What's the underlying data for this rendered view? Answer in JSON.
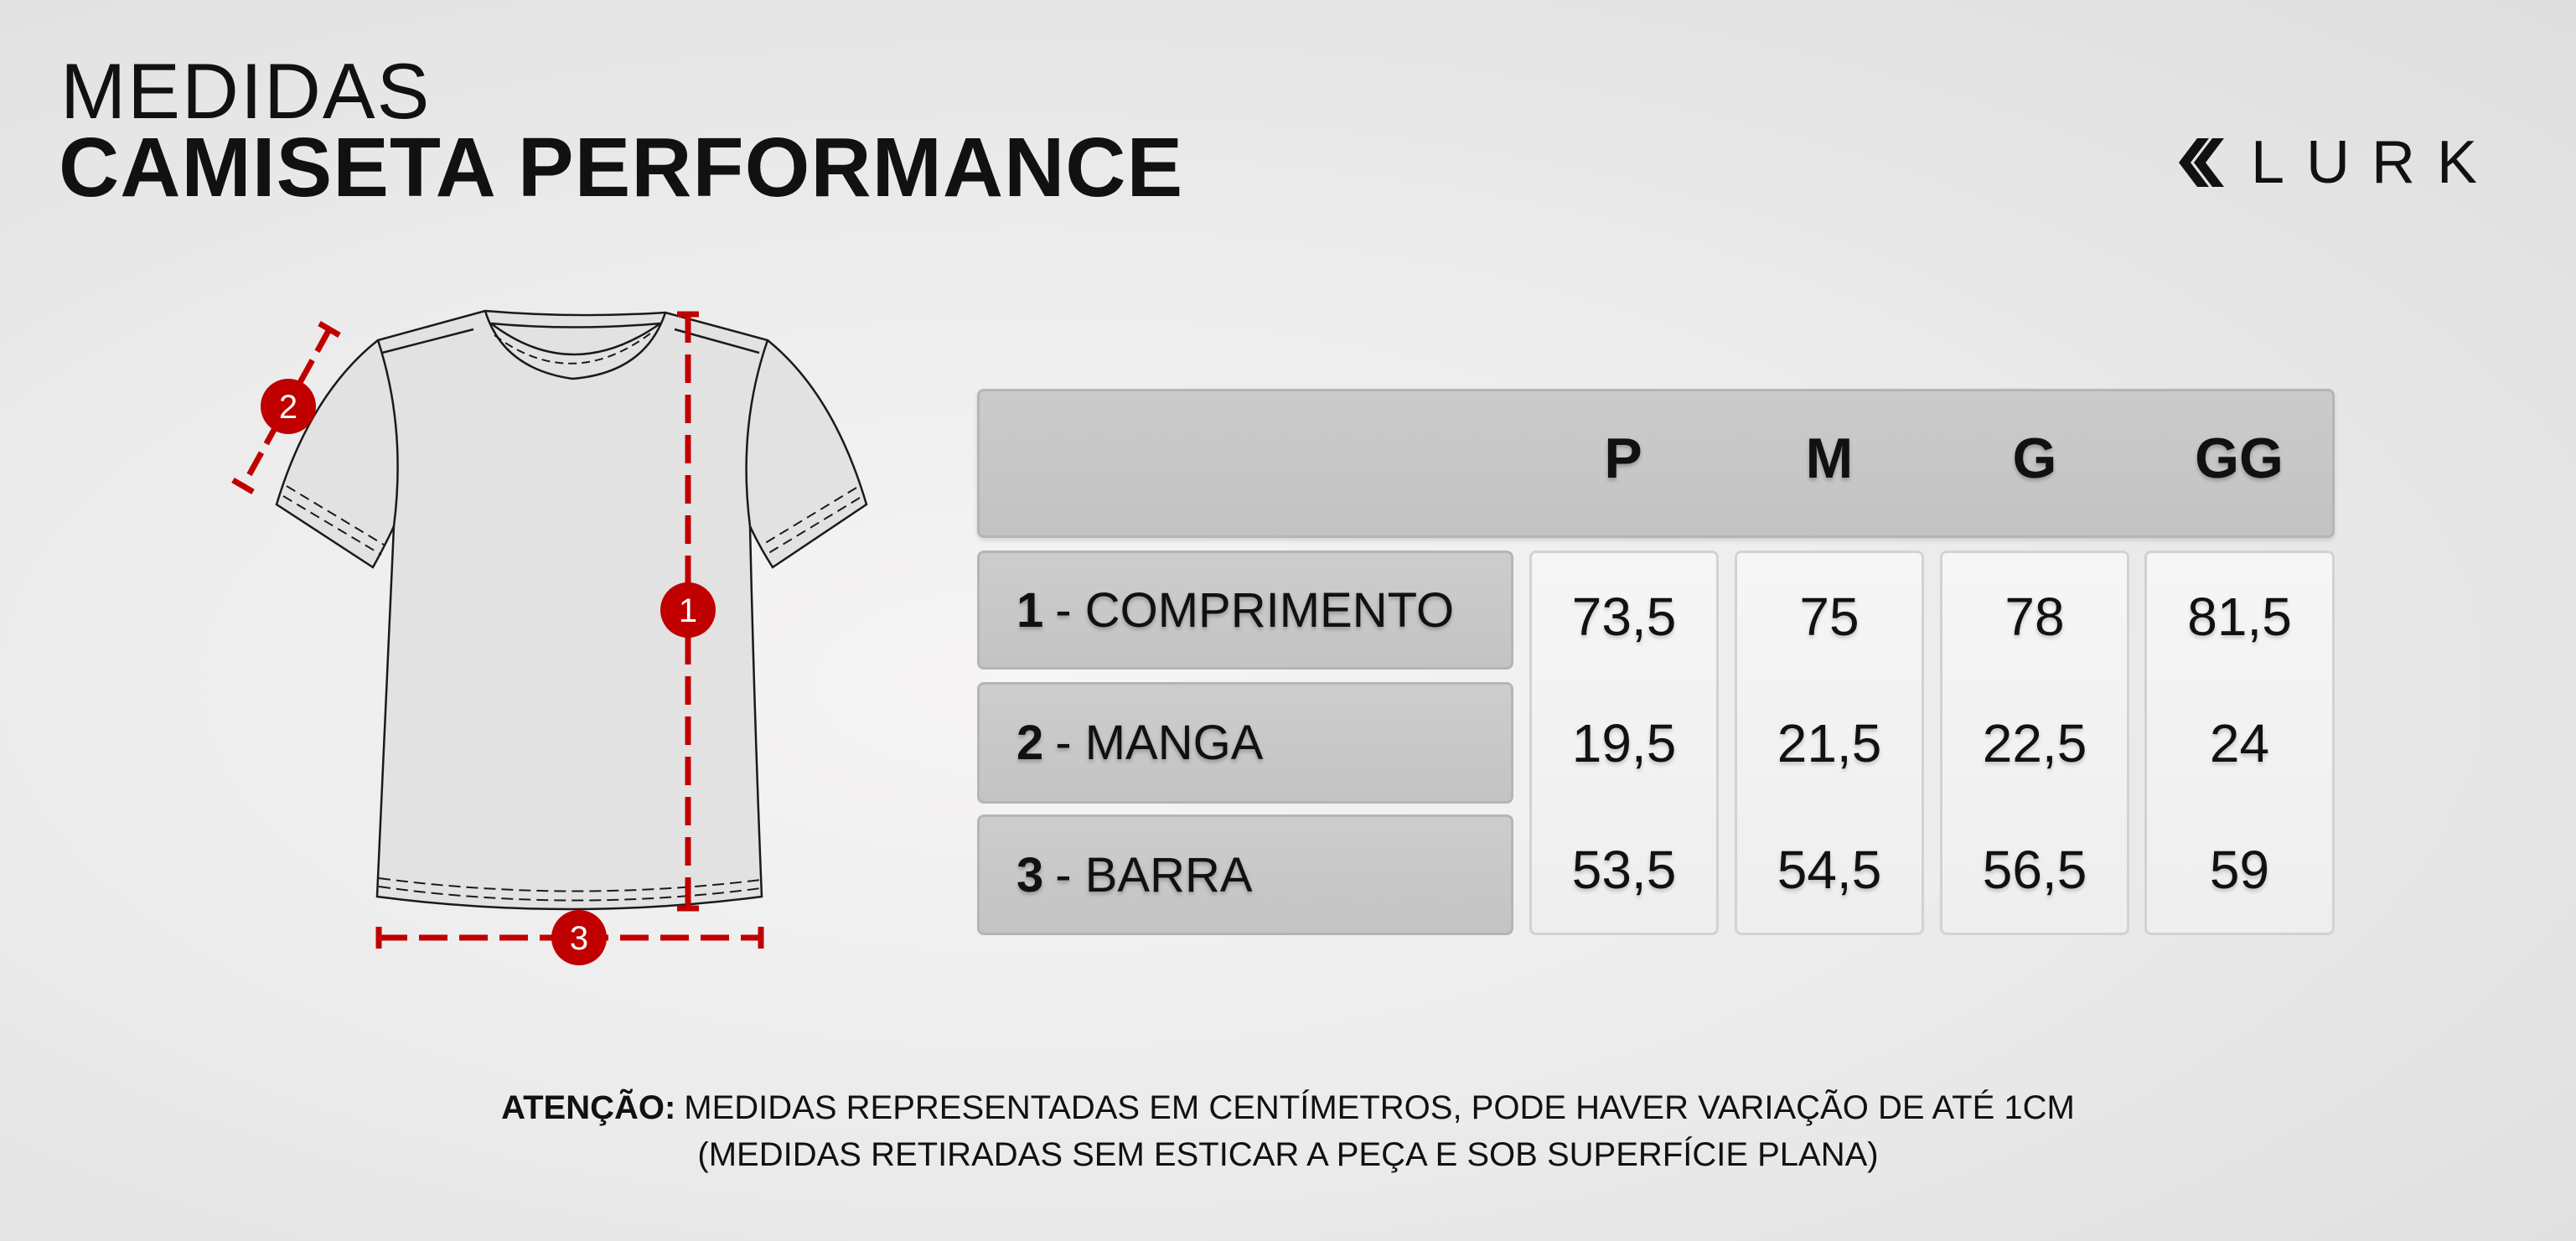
{
  "header": {
    "title_line1": "MEDIDAS",
    "title_line2": "CAMISETA PERFORMANCE"
  },
  "logo": {
    "text": "LURK",
    "icon": "double-chevron-left-icon"
  },
  "accent_color": "#c00000",
  "diagram": {
    "markers": [
      "1",
      "2",
      "3"
    ]
  },
  "table": {
    "sizes": [
      "P",
      "M",
      "G",
      "GG"
    ],
    "rows": [
      {
        "num": "1",
        "label": "- COMPRIMENTO",
        "values": [
          "73,5",
          "75",
          "78",
          "81,5"
        ]
      },
      {
        "num": "2",
        "label": "- MANGA",
        "values": [
          "19,5",
          "21,5",
          "22,5",
          "24"
        ]
      },
      {
        "num": "3",
        "label": "- BARRA",
        "values": [
          "53,5",
          "54,5",
          "56,5",
          "59"
        ]
      }
    ]
  },
  "note": {
    "bold": "ATENÇÃO:",
    "line1": "MEDIDAS REPRESENTADAS EM CENTÍMETROS, PODE HAVER VARIAÇÃO DE ATÉ 1CM",
    "line2": "(MEDIDAS RETIRADAS SEM ESTICAR A PEÇA E SOB SUPERFÍCIE PLANA)"
  }
}
